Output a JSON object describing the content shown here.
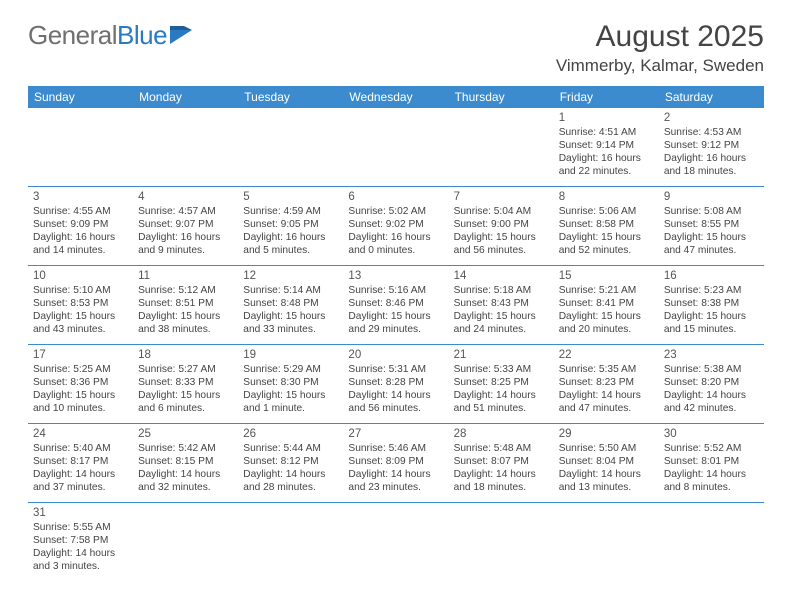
{
  "logo": {
    "text1": "General",
    "text2": "Blue"
  },
  "header": {
    "month_year": "August 2025",
    "location": "Vimmerby, Kalmar, Sweden"
  },
  "dow": [
    "Sunday",
    "Monday",
    "Tuesday",
    "Wednesday",
    "Thursday",
    "Friday",
    "Saturday"
  ],
  "colors": {
    "bar": "#3b8bce",
    "rule": "#3b8bce",
    "logo_gray": "#6f6f6f",
    "logo_blue": "#2a79c3"
  },
  "cells": [
    {
      "n": "",
      "sr": "",
      "ss": "",
      "dl": ""
    },
    {
      "n": "",
      "sr": "",
      "ss": "",
      "dl": ""
    },
    {
      "n": "",
      "sr": "",
      "ss": "",
      "dl": ""
    },
    {
      "n": "",
      "sr": "",
      "ss": "",
      "dl": ""
    },
    {
      "n": "",
      "sr": "",
      "ss": "",
      "dl": ""
    },
    {
      "n": "1",
      "sr": "Sunrise: 4:51 AM",
      "ss": "Sunset: 9:14 PM",
      "dl": "Daylight: 16 hours and 22 minutes."
    },
    {
      "n": "2",
      "sr": "Sunrise: 4:53 AM",
      "ss": "Sunset: 9:12 PM",
      "dl": "Daylight: 16 hours and 18 minutes."
    },
    {
      "n": "3",
      "sr": "Sunrise: 4:55 AM",
      "ss": "Sunset: 9:09 PM",
      "dl": "Daylight: 16 hours and 14 minutes."
    },
    {
      "n": "4",
      "sr": "Sunrise: 4:57 AM",
      "ss": "Sunset: 9:07 PM",
      "dl": "Daylight: 16 hours and 9 minutes."
    },
    {
      "n": "5",
      "sr": "Sunrise: 4:59 AM",
      "ss": "Sunset: 9:05 PM",
      "dl": "Daylight: 16 hours and 5 minutes."
    },
    {
      "n": "6",
      "sr": "Sunrise: 5:02 AM",
      "ss": "Sunset: 9:02 PM",
      "dl": "Daylight: 16 hours and 0 minutes."
    },
    {
      "n": "7",
      "sr": "Sunrise: 5:04 AM",
      "ss": "Sunset: 9:00 PM",
      "dl": "Daylight: 15 hours and 56 minutes."
    },
    {
      "n": "8",
      "sr": "Sunrise: 5:06 AM",
      "ss": "Sunset: 8:58 PM",
      "dl": "Daylight: 15 hours and 52 minutes."
    },
    {
      "n": "9",
      "sr": "Sunrise: 5:08 AM",
      "ss": "Sunset: 8:55 PM",
      "dl": "Daylight: 15 hours and 47 minutes."
    },
    {
      "n": "10",
      "sr": "Sunrise: 5:10 AM",
      "ss": "Sunset: 8:53 PM",
      "dl": "Daylight: 15 hours and 43 minutes."
    },
    {
      "n": "11",
      "sr": "Sunrise: 5:12 AM",
      "ss": "Sunset: 8:51 PM",
      "dl": "Daylight: 15 hours and 38 minutes."
    },
    {
      "n": "12",
      "sr": "Sunrise: 5:14 AM",
      "ss": "Sunset: 8:48 PM",
      "dl": "Daylight: 15 hours and 33 minutes."
    },
    {
      "n": "13",
      "sr": "Sunrise: 5:16 AM",
      "ss": "Sunset: 8:46 PM",
      "dl": "Daylight: 15 hours and 29 minutes."
    },
    {
      "n": "14",
      "sr": "Sunrise: 5:18 AM",
      "ss": "Sunset: 8:43 PM",
      "dl": "Daylight: 15 hours and 24 minutes."
    },
    {
      "n": "15",
      "sr": "Sunrise: 5:21 AM",
      "ss": "Sunset: 8:41 PM",
      "dl": "Daylight: 15 hours and 20 minutes."
    },
    {
      "n": "16",
      "sr": "Sunrise: 5:23 AM",
      "ss": "Sunset: 8:38 PM",
      "dl": "Daylight: 15 hours and 15 minutes."
    },
    {
      "n": "17",
      "sr": "Sunrise: 5:25 AM",
      "ss": "Sunset: 8:36 PM",
      "dl": "Daylight: 15 hours and 10 minutes."
    },
    {
      "n": "18",
      "sr": "Sunrise: 5:27 AM",
      "ss": "Sunset: 8:33 PM",
      "dl": "Daylight: 15 hours and 6 minutes."
    },
    {
      "n": "19",
      "sr": "Sunrise: 5:29 AM",
      "ss": "Sunset: 8:30 PM",
      "dl": "Daylight: 15 hours and 1 minute."
    },
    {
      "n": "20",
      "sr": "Sunrise: 5:31 AM",
      "ss": "Sunset: 8:28 PM",
      "dl": "Daylight: 14 hours and 56 minutes."
    },
    {
      "n": "21",
      "sr": "Sunrise: 5:33 AM",
      "ss": "Sunset: 8:25 PM",
      "dl": "Daylight: 14 hours and 51 minutes."
    },
    {
      "n": "22",
      "sr": "Sunrise: 5:35 AM",
      "ss": "Sunset: 8:23 PM",
      "dl": "Daylight: 14 hours and 47 minutes."
    },
    {
      "n": "23",
      "sr": "Sunrise: 5:38 AM",
      "ss": "Sunset: 8:20 PM",
      "dl": "Daylight: 14 hours and 42 minutes."
    },
    {
      "n": "24",
      "sr": "Sunrise: 5:40 AM",
      "ss": "Sunset: 8:17 PM",
      "dl": "Daylight: 14 hours and 37 minutes."
    },
    {
      "n": "25",
      "sr": "Sunrise: 5:42 AM",
      "ss": "Sunset: 8:15 PM",
      "dl": "Daylight: 14 hours and 32 minutes."
    },
    {
      "n": "26",
      "sr": "Sunrise: 5:44 AM",
      "ss": "Sunset: 8:12 PM",
      "dl": "Daylight: 14 hours and 28 minutes."
    },
    {
      "n": "27",
      "sr": "Sunrise: 5:46 AM",
      "ss": "Sunset: 8:09 PM",
      "dl": "Daylight: 14 hours and 23 minutes."
    },
    {
      "n": "28",
      "sr": "Sunrise: 5:48 AM",
      "ss": "Sunset: 8:07 PM",
      "dl": "Daylight: 14 hours and 18 minutes."
    },
    {
      "n": "29",
      "sr": "Sunrise: 5:50 AM",
      "ss": "Sunset: 8:04 PM",
      "dl": "Daylight: 14 hours and 13 minutes."
    },
    {
      "n": "30",
      "sr": "Sunrise: 5:52 AM",
      "ss": "Sunset: 8:01 PM",
      "dl": "Daylight: 14 hours and 8 minutes."
    },
    {
      "n": "31",
      "sr": "Sunrise: 5:55 AM",
      "ss": "Sunset: 7:58 PM",
      "dl": "Daylight: 14 hours and 3 minutes."
    },
    {
      "n": "",
      "sr": "",
      "ss": "",
      "dl": ""
    },
    {
      "n": "",
      "sr": "",
      "ss": "",
      "dl": ""
    },
    {
      "n": "",
      "sr": "",
      "ss": "",
      "dl": ""
    },
    {
      "n": "",
      "sr": "",
      "ss": "",
      "dl": ""
    },
    {
      "n": "",
      "sr": "",
      "ss": "",
      "dl": ""
    },
    {
      "n": "",
      "sr": "",
      "ss": "",
      "dl": ""
    }
  ]
}
